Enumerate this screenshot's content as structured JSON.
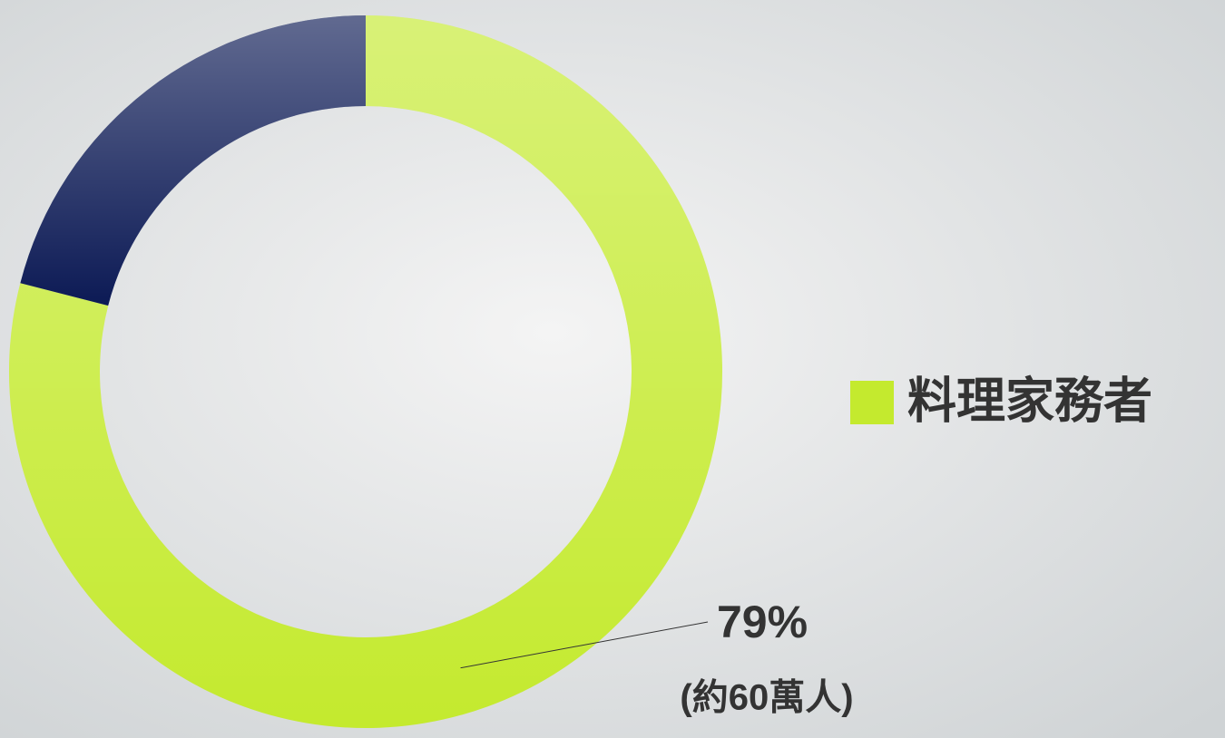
{
  "chart_data": {
    "type": "donut",
    "categories": [
      "料理家務者",
      null
    ],
    "values": [
      79,
      21
    ],
    "colors": [
      "#c4ea2e",
      "#0c1a55"
    ],
    "value_labels": [
      "79%",
      null
    ],
    "sub_labels": [
      "(約60萬人)",
      null
    ],
    "legend": "right"
  }
}
